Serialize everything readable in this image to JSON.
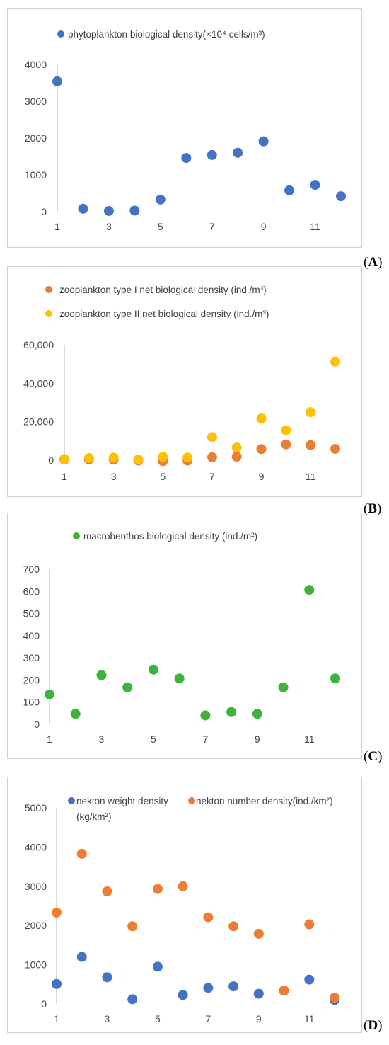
{
  "tags": [
    "A",
    "B",
    "C",
    "D"
  ],
  "chart_data": [
    {
      "type": "scatter",
      "panel": "A",
      "xlim": [
        1,
        12
      ],
      "ylim": [
        0,
        4000
      ],
      "xticks": [
        1,
        3,
        5,
        7,
        9,
        11
      ],
      "yticks": [
        "0",
        "1000",
        "2000",
        "3000",
        "4000"
      ],
      "ytick_values": [
        0,
        1000,
        2000,
        3000,
        4000
      ],
      "x": [
        1,
        2,
        3,
        4,
        5,
        6,
        7,
        8,
        9,
        10,
        11,
        12
      ],
      "series": [
        {
          "name": "phytoplankton biological density(×10⁴ cells/m³)",
          "color": "#4472c4",
          "values": [
            3540,
            80,
            20,
            30,
            330,
            1460,
            1540,
            1600,
            1910,
            580,
            730,
            420
          ]
        }
      ],
      "legend": "top"
    },
    {
      "type": "scatter",
      "panel": "B",
      "xlim": [
        1,
        12
      ],
      "ylim": [
        0,
        60000
      ],
      "xticks": [
        1,
        3,
        5,
        7,
        9,
        11
      ],
      "yticks": [
        "0",
        "20,000",
        "40,000",
        "60,000"
      ],
      "ytick_values": [
        0,
        20000,
        40000,
        60000
      ],
      "x": [
        1,
        2,
        3,
        4,
        5,
        6,
        7,
        8,
        9,
        10,
        11,
        12
      ],
      "series": [
        {
          "name": "zooplankton type I net biological density (ind./m³)",
          "color": "#ed7d31",
          "values": [
            300,
            400,
            300,
            -200,
            -500,
            -200,
            1500,
            1800,
            5800,
            8200,
            7800,
            5900
          ]
        },
        {
          "name": "zooplankton type II net biological density (ind./m³)",
          "color": "#ffc000",
          "values": [
            600,
            1100,
            1300,
            300,
            1700,
            1400,
            12000,
            6600,
            21700,
            15600,
            25000,
            51300
          ]
        }
      ],
      "legend": "top"
    },
    {
      "type": "scatter",
      "panel": "C",
      "xlim": [
        1,
        12
      ],
      "ylim": [
        0,
        700
      ],
      "xticks": [
        1,
        3,
        5,
        7,
        9,
        11
      ],
      "yticks": [
        "0",
        "100",
        "200",
        "300",
        "400",
        "500",
        "600",
        "700"
      ],
      "ytick_values": [
        0,
        100,
        200,
        300,
        400,
        500,
        600,
        700
      ],
      "x": [
        1,
        2,
        3,
        4,
        5,
        6,
        7,
        8,
        9,
        10,
        11,
        12
      ],
      "series": [
        {
          "name": "macrobenthos biological density (ind./m²)",
          "color": "#3cb43c",
          "values": [
            135,
            47,
            222,
            167,
            247,
            207,
            40,
            55,
            47,
            167,
            607,
            207
          ]
        }
      ],
      "legend": "top"
    },
    {
      "type": "scatter",
      "panel": "D",
      "xlim": [
        1,
        12
      ],
      "ylim": [
        0,
        5000
      ],
      "xticks": [
        1,
        3,
        5,
        7,
        9,
        11
      ],
      "yticks": [
        "0",
        "1000",
        "2000",
        "3000",
        "4000",
        "5000"
      ],
      "ytick_values": [
        0,
        1000,
        2000,
        3000,
        4000,
        5000
      ],
      "x": [
        1,
        2,
        3,
        4,
        5,
        6,
        7,
        8,
        9,
        10,
        11,
        12
      ],
      "series": [
        {
          "name": "nekton weight density",
          "name_line2": "(kg/km²)",
          "color": "#4472c4",
          "values": [
            510,
            1200,
            680,
            120,
            950,
            230,
            410,
            450,
            260,
            340,
            620,
            100
          ]
        },
        {
          "name": "nekton number density(ind./km²)",
          "color": "#ed7d31",
          "values": [
            2330,
            3830,
            2870,
            1980,
            2930,
            3000,
            2210,
            1980,
            1790,
            340,
            2030,
            160
          ]
        }
      ],
      "legend": "top"
    }
  ]
}
